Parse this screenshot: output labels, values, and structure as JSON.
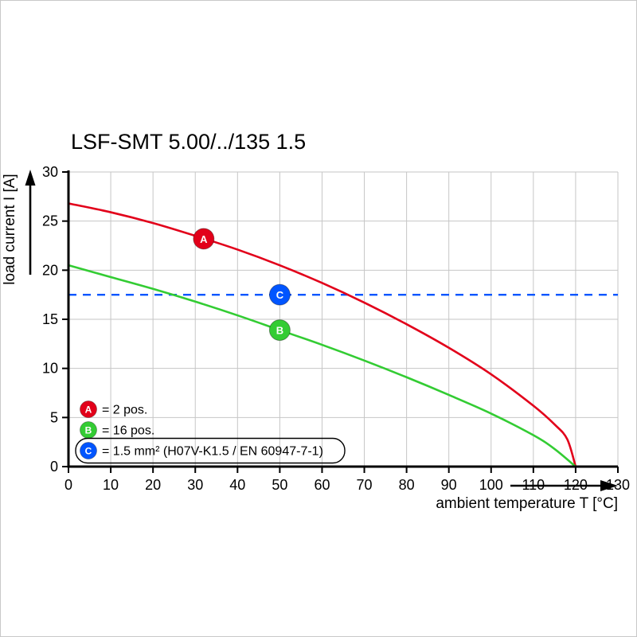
{
  "chart_data": {
    "type": "line",
    "title": "LSF-SMT 5.00/../135 1.5",
    "xlabel": "ambient temperature T [°C]",
    "ylabel": "load current I [A]",
    "xlim": [
      0,
      130
    ],
    "ylim": [
      0,
      30
    ],
    "xticks": [
      0,
      10,
      20,
      30,
      40,
      50,
      60,
      70,
      80,
      90,
      100,
      110,
      120,
      130
    ],
    "yticks": [
      0,
      5,
      10,
      15,
      20,
      25,
      30
    ],
    "grid": true,
    "legend_position": "lower-left",
    "colors": {
      "grid": "#c6c6c6",
      "axis": "#000000",
      "red": "#e2001a",
      "green": "#33cc33",
      "blue": "#0055ff"
    },
    "series": [
      {
        "name": "A",
        "legend_label": "= 2 pos.",
        "color": "#e2001a",
        "type": "curve",
        "marker": {
          "x": 32,
          "y": 23.2,
          "label": "A"
        },
        "points": [
          [
            0,
            26.8
          ],
          [
            10,
            25.9
          ],
          [
            20,
            24.8
          ],
          [
            30,
            23.5
          ],
          [
            40,
            22.1
          ],
          [
            50,
            20.5
          ],
          [
            60,
            18.7
          ],
          [
            70,
            16.7
          ],
          [
            80,
            14.5
          ],
          [
            90,
            12.1
          ],
          [
            100,
            9.4
          ],
          [
            110,
            6.2
          ],
          [
            115,
            4.3
          ],
          [
            118,
            2.8
          ],
          [
            120,
            0
          ]
        ]
      },
      {
        "name": "B",
        "legend_label": "= 16 pos.",
        "color": "#33cc33",
        "type": "curve",
        "marker": {
          "x": 50,
          "y": 13.9,
          "label": "B"
        },
        "points": [
          [
            0,
            20.5
          ],
          [
            10,
            19.3
          ],
          [
            20,
            18.1
          ],
          [
            30,
            16.8
          ],
          [
            40,
            15.4
          ],
          [
            50,
            13.9
          ],
          [
            60,
            12.4
          ],
          [
            70,
            10.8
          ],
          [
            80,
            9.1
          ],
          [
            90,
            7.3
          ],
          [
            100,
            5.4
          ],
          [
            110,
            3.2
          ],
          [
            115,
            1.8
          ],
          [
            120,
            0
          ]
        ]
      },
      {
        "name": "C",
        "legend_label": "= 1.5 mm² (H07V-K1.5 / EN 60947-7-1)",
        "color": "#0055ff",
        "type": "hline",
        "y": 17.5,
        "dash": true,
        "boxed_legend": true,
        "marker": {
          "x": 50,
          "y": 17.5,
          "label": "C"
        }
      }
    ]
  }
}
